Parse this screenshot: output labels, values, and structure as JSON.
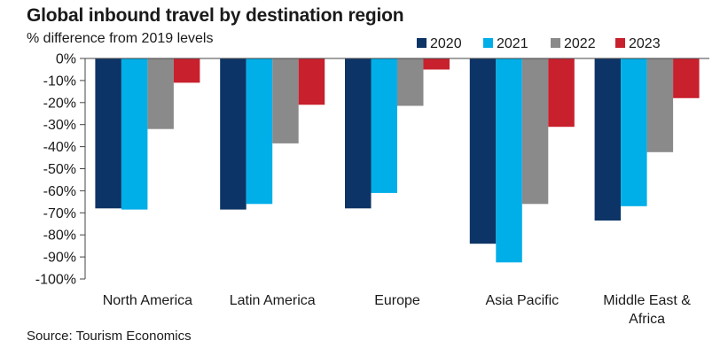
{
  "chart_data": {
    "type": "bar",
    "title": "Global inbound travel by destination region",
    "subtitle": "% difference from 2019 levels",
    "source": "Source: Tourism Economics",
    "categories": [
      [
        "North America"
      ],
      [
        "Latin America"
      ],
      [
        "Europe"
      ],
      [
        "Asia Pacific"
      ],
      [
        "Middle East &",
        "Africa"
      ]
    ],
    "series": [
      {
        "name": "2020",
        "color": "#0d3466",
        "values": [
          -68,
          -68.5,
          -68,
          -84,
          -73.5
        ]
      },
      {
        "name": "2021",
        "color": "#00aee8",
        "values": [
          -68.5,
          -66,
          -61,
          -92.5,
          -67
        ]
      },
      {
        "name": "2022",
        "color": "#8a8a8a",
        "values": [
          -32,
          -38.5,
          -21.5,
          -66,
          -42.5
        ]
      },
      {
        "name": "2023",
        "color": "#c8202d",
        "values": [
          -11,
          -21,
          -5,
          -31,
          -18
        ]
      }
    ],
    "ylim": [
      -100,
      0
    ],
    "yticks": [
      0,
      -10,
      -20,
      -30,
      -40,
      -50,
      -60,
      -70,
      -80,
      -90,
      -100
    ],
    "ytick_labels": [
      "0%",
      "-10%",
      "-20%",
      "-30%",
      "-40%",
      "-50%",
      "-60%",
      "-70%",
      "-80%",
      "-90%",
      "-100%"
    ],
    "xlabel": "",
    "ylabel": "",
    "legend": "top-right",
    "grid": false
  }
}
